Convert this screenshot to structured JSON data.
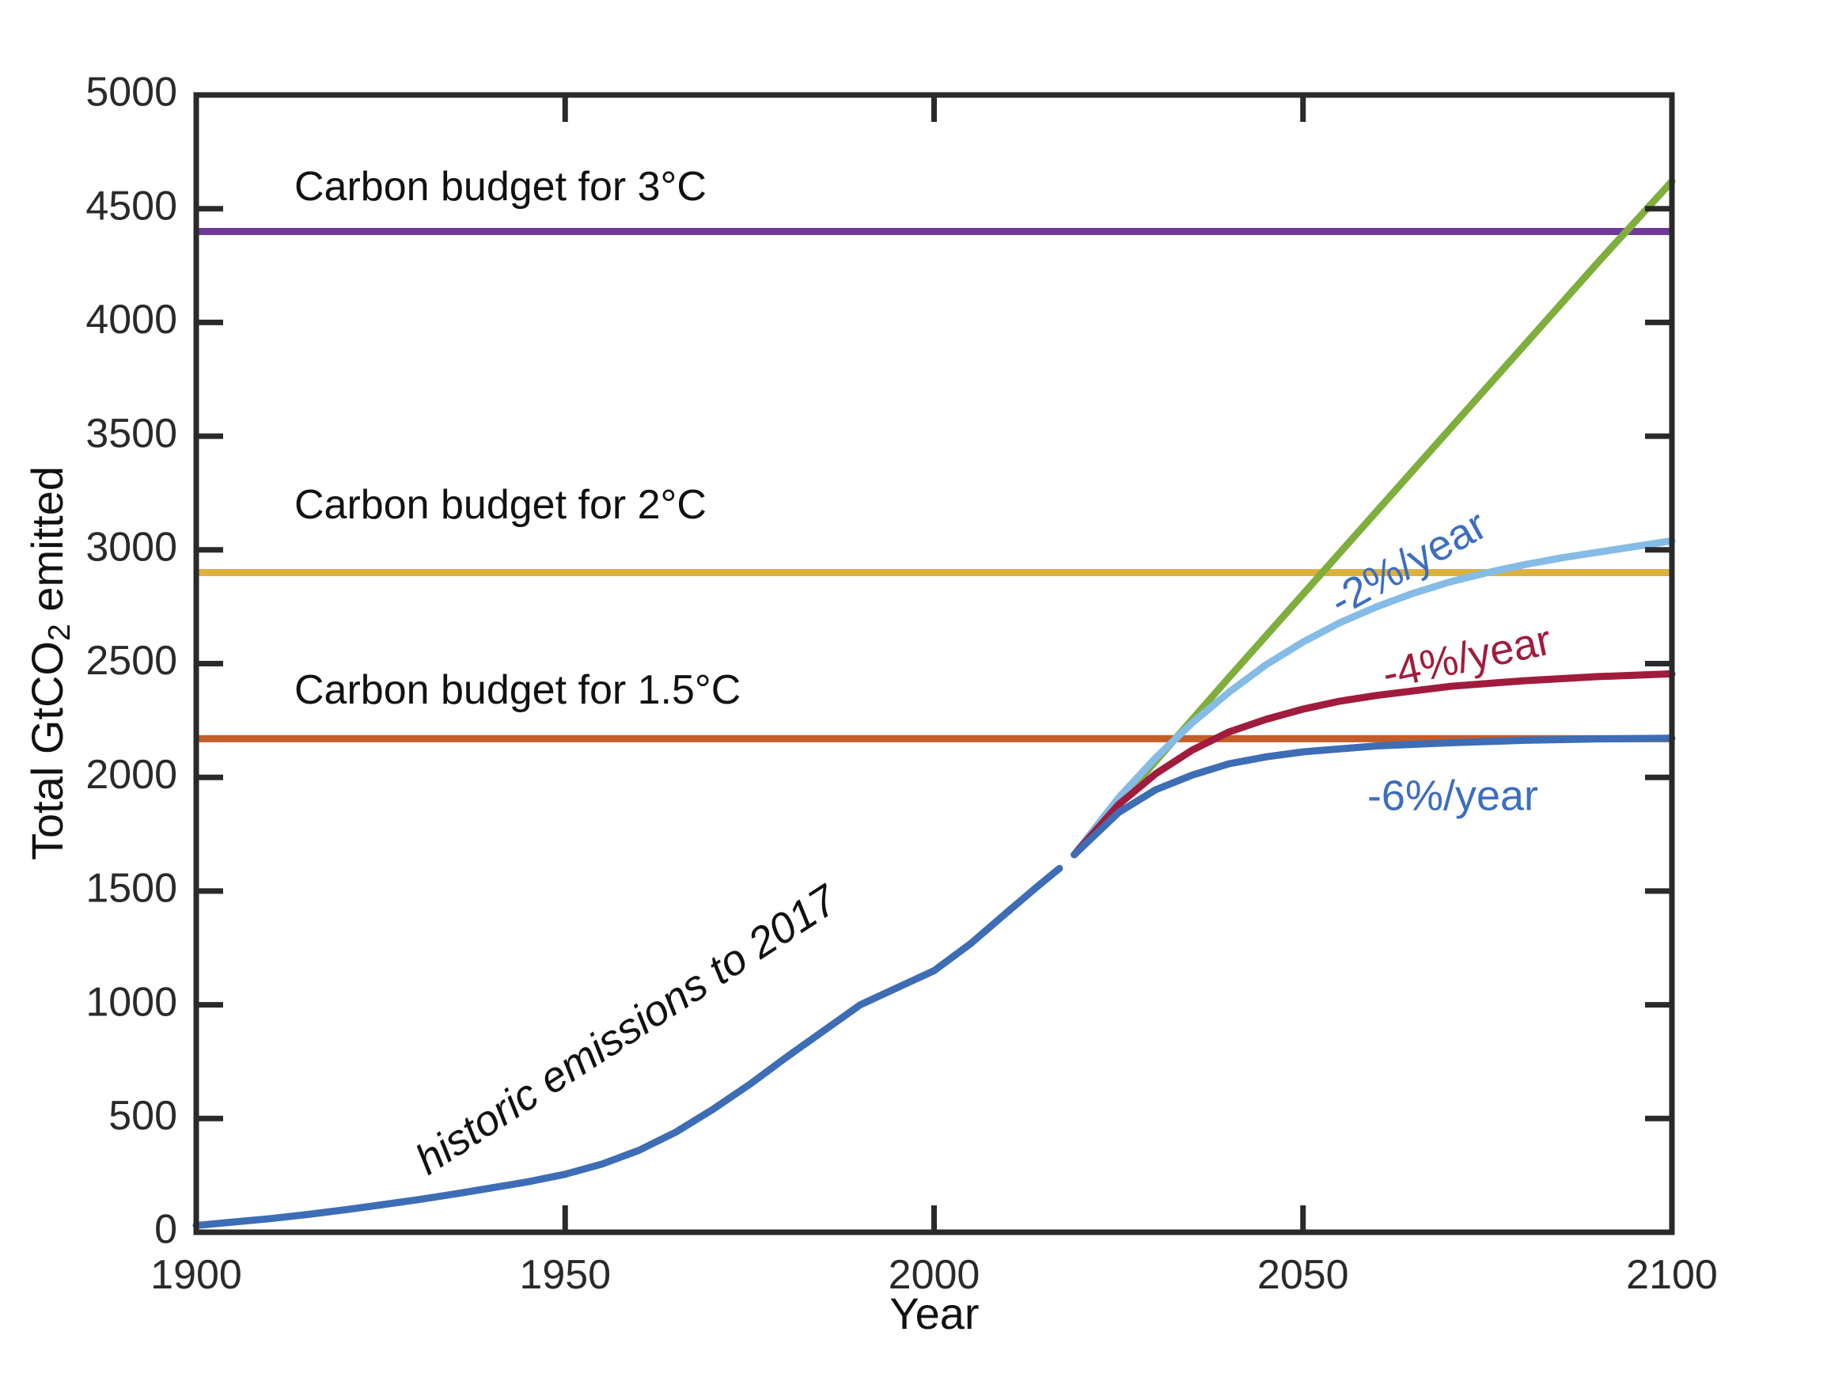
{
  "figure": {
    "xlabel": "Year",
    "ylabel_prefix": "Total GtCO",
    "ylabel_sub": "2",
    "ylabel_suffix": " emitted"
  },
  "annotations": {
    "budget3": {
      "text": "Carbon budget for 3°C",
      "color": "#111111"
    },
    "budget2": {
      "text": "Carbon budget for 2°C",
      "color": "#111111"
    },
    "budget15": {
      "text": "Carbon budget for 1.5°C",
      "color": "#111111"
    },
    "historic": {
      "text": "historic emissions to 2017",
      "color": "#111111"
    },
    "rate2": {
      "text": "-2%/year",
      "color": "#3c6ec0"
    },
    "rate4": {
      "text": "-4%/year",
      "color": "#a11c3c"
    },
    "rate6": {
      "text": "-6%/year",
      "color": "#3c6ec0"
    }
  },
  "chart_data": {
    "type": "line",
    "title": "",
    "xlabel": "Year",
    "ylabel": "Total GtCO2 emitted",
    "xlim": [
      1900,
      2100
    ],
    "ylim": [
      0,
      5000
    ],
    "xticks": [
      1900,
      1950,
      2000,
      2050,
      2100
    ],
    "yticks": [
      0,
      500,
      1000,
      1500,
      2000,
      2500,
      3000,
      3500,
      4000,
      4500,
      5000
    ],
    "grid": false,
    "legend_position": "none (inline text annotations)",
    "axis_color": "#2a2a2a",
    "budget_lines": [
      {
        "label": "Carbon budget for 3°C",
        "value": 4400,
        "color": "#6e3a97"
      },
      {
        "label": "Carbon budget for 2°C",
        "value": 2900,
        "color": "#ddb13d"
      },
      {
        "label": "Carbon budget for 1.5°C",
        "value": 2170,
        "color": "#c55d28"
      }
    ],
    "series": [
      {
        "id": "historic",
        "name": "historic emissions to 2017",
        "color": "#3d6db5",
        "x": [
          1900,
          1905,
          1910,
          1915,
          1920,
          1925,
          1930,
          1935,
          1940,
          1945,
          1950,
          1955,
          1960,
          1965,
          1970,
          1975,
          1980,
          1985,
          1990,
          1995,
          2000,
          2005,
          2010,
          2014,
          2017
        ],
        "y": [
          30,
          45,
          60,
          78,
          98,
          120,
          143,
          168,
          195,
          222,
          255,
          300,
          360,
          440,
          540,
          650,
          770,
          885,
          1000,
          1075,
          1150,
          1270,
          1410,
          1520,
          1600
        ]
      },
      {
        "id": "constant-emissions",
        "name": "",
        "color": "#7fae3d",
        "x": [
          2019,
          2030,
          2040,
          2050,
          2060,
          2070,
          2080,
          2090,
          2100
        ],
        "y": [
          1660,
          2070,
          2440,
          2805,
          3170,
          3535,
          3900,
          4265,
          4620
        ]
      },
      {
        "id": "minus2-per-year",
        "name": "-2%/year",
        "color": "#84bce6",
        "x": [
          2019,
          2025,
          2030,
          2035,
          2040,
          2045,
          2050,
          2055,
          2060,
          2065,
          2070,
          2075,
          2080,
          2085,
          2090,
          2095,
          2100
        ],
        "y": [
          1660,
          1910,
          2085,
          2240,
          2375,
          2495,
          2595,
          2680,
          2750,
          2810,
          2860,
          2900,
          2935,
          2965,
          2990,
          3015,
          3040
        ]
      },
      {
        "id": "minus4-per-year",
        "name": "-4%/year",
        "color": "#a11c3c",
        "x": [
          2019,
          2025,
          2030,
          2035,
          2040,
          2045,
          2050,
          2055,
          2060,
          2070,
          2080,
          2090,
          2100
        ],
        "y": [
          1660,
          1880,
          2015,
          2120,
          2200,
          2255,
          2300,
          2335,
          2360,
          2400,
          2425,
          2443,
          2455
        ]
      },
      {
        "id": "minus6-per-year",
        "name": "-6%/year",
        "color": "#3d6db5",
        "x": [
          2019,
          2025,
          2030,
          2035,
          2040,
          2045,
          2050,
          2060,
          2070,
          2080,
          2090,
          2100
        ],
        "y": [
          1660,
          1845,
          1945,
          2010,
          2060,
          2090,
          2112,
          2138,
          2152,
          2163,
          2169,
          2172
        ]
      }
    ]
  }
}
